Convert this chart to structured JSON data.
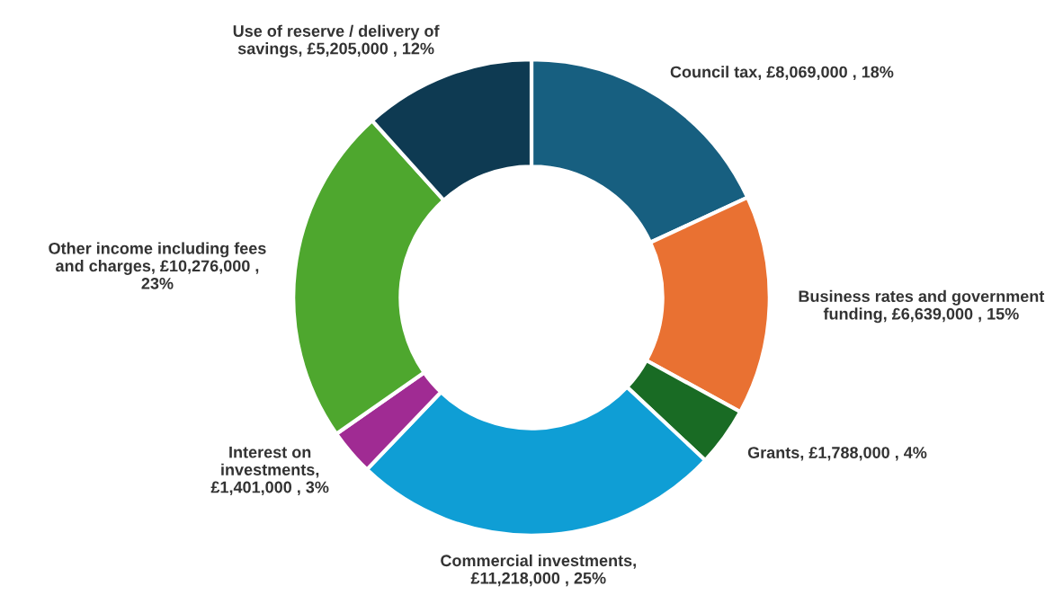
{
  "chart_data": {
    "type": "donut",
    "categories": [
      "Council tax",
      "Business rates and government\nfunding",
      "Grants",
      "Commercial investments",
      "Interest on\ninvestments",
      "Other income including fees\nand charges",
      "Use of reserve / delivery of\nsavings"
    ],
    "values": [
      8069000,
      6639000,
      1788000,
      11218000,
      1401000,
      10276000,
      5205000
    ],
    "colors": [
      "#175f80",
      "#e97132",
      "#196b24",
      "#0f9ed5",
      "#a02b93",
      "#4ea72e",
      "#0e3a52"
    ],
    "value_labels": [
      ", £8,069,000 , 18%",
      ", £6,639,000 , 15%",
      ", £1,788,000 , 4%",
      ",\n£11,218,000 , 25%",
      ",\n£1,401,000 , 3%",
      ", £10,276,000 ,\n23%",
      ", £5,205,000 , 12%"
    ]
  }
}
